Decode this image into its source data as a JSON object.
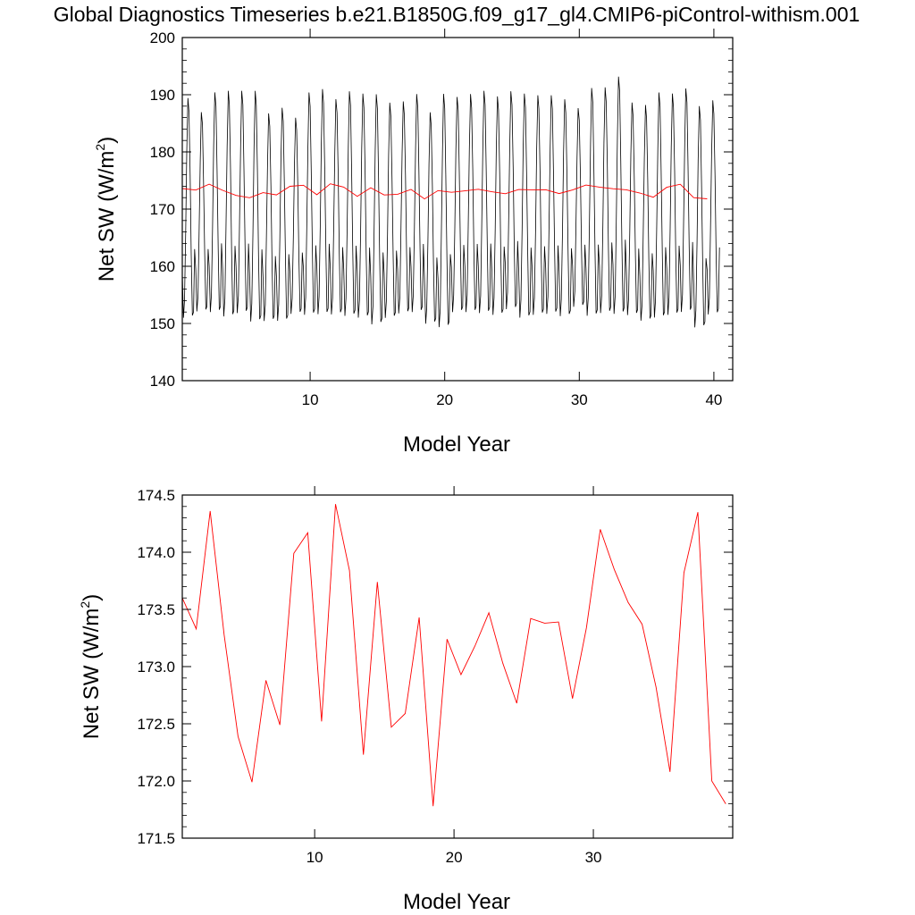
{
  "title": "Global Diagnostics Timeseries b.e21.B1850G.f09_g17_gl4.CMIP6-piControl-withism.001",
  "chart_data": [
    {
      "type": "line",
      "xlabel": "Model Year",
      "ylabel_main": "Net SW (W/m",
      "ylabel_sup": "2",
      "ylabel_close": ")",
      "xlim": [
        0.5,
        41.4
      ],
      "ylim": [
        140,
        200
      ],
      "xticks": [
        10,
        20,
        30,
        40
      ],
      "xtick_labels": [
        "10",
        "20",
        "30",
        "40"
      ],
      "yticks": [
        140,
        150,
        160,
        170,
        180,
        190,
        200
      ],
      "ytick_labels": [
        "140",
        "150",
        "160",
        "170",
        "180",
        "190",
        "200"
      ],
      "series": [
        {
          "style": "monthly",
          "color": "#000000",
          "monthly_min": [
            150.0,
            151.2,
            151.0,
            150.2,
            150.8,
            149.3,
            149.5,
            149.5,
            150.8,
            150.5,
            150.6,
            150.6,
            150.3,
            150.0,
            148.8,
            150.0,
            150.8,
            151.0,
            149.0,
            148.3,
            151.0,
            151.0,
            150.8,
            150.5,
            151.5,
            150.0,
            150.5,
            150.7,
            150.3,
            152.0,
            150.3,
            150.8,
            150.6,
            150.5,
            149.5,
            150.0,
            150.5,
            151.0,
            148.3,
            150.6
          ],
          "monthly_max": [
            190.0,
            187.5,
            191.0,
            191.3,
            191.3,
            191.3,
            187.3,
            188.3,
            186.5,
            191.0,
            191.6,
            189.8,
            191.2,
            190.8,
            190.7,
            189.2,
            189.4,
            190.7,
            187.5,
            190.8,
            190.2,
            190.7,
            191.3,
            190.3,
            191.2,
            190.8,
            190.5,
            190.5,
            189.8,
            188.2,
            191.8,
            191.9,
            193.8,
            189.2,
            188.8,
            191.0,
            190.8,
            191.7,
            188.6,
            189.6
          ]
        },
        {
          "style": "annual",
          "color": "#ff0000",
          "x": [
            0.5,
            1.5,
            2.5,
            3.5,
            4.5,
            5.5,
            6.5,
            7.5,
            8.5,
            9.5,
            10.5,
            11.5,
            12.5,
            13.5,
            14.5,
            15.5,
            16.5,
            17.5,
            18.5,
            19.5,
            20.5,
            21.5,
            22.5,
            23.5,
            24.5,
            25.5,
            26.5,
            27.5,
            28.5,
            29.5,
            30.5,
            31.5,
            32.5,
            33.5,
            34.5,
            35.5,
            36.5,
            37.5,
            38.5,
            39.5
          ],
          "values": [
            173.6,
            173.33,
            174.36,
            173.28,
            172.39,
            171.99,
            172.88,
            172.49,
            173.99,
            174.17,
            172.52,
            174.42,
            173.84,
            172.23,
            173.74,
            172.47,
            172.59,
            173.43,
            171.78,
            173.24,
            172.93,
            173.18,
            173.47,
            173.03,
            172.68,
            173.42,
            173.38,
            173.39,
            172.72,
            173.34,
            174.2,
            173.85,
            173.56,
            173.37,
            172.82,
            172.08,
            173.82,
            174.35,
            172.0,
            171.8
          ]
        }
      ]
    },
    {
      "type": "line",
      "xlabel": "Model Year",
      "ylabel_main": "Net SW (W/m",
      "ylabel_sup": "2",
      "ylabel_close": ")",
      "xlim": [
        0.5,
        40.0
      ],
      "ylim": [
        171.5,
        174.5
      ],
      "xticks": [
        10,
        20,
        30
      ],
      "xtick_labels": [
        "10",
        "20",
        "30"
      ],
      "yticks": [
        171.5,
        172.0,
        172.5,
        173.0,
        173.5,
        174.0,
        174.5
      ],
      "ytick_labels": [
        "171.5",
        "172.0",
        "172.5",
        "173.0",
        "173.5",
        "174.0",
        "174.5"
      ],
      "series": [
        {
          "style": "annual",
          "color": "#ff0000",
          "x": [
            0.5,
            1.5,
            2.5,
            3.5,
            4.5,
            5.5,
            6.5,
            7.5,
            8.5,
            9.5,
            10.5,
            11.5,
            12.5,
            13.5,
            14.5,
            15.5,
            16.5,
            17.5,
            18.5,
            19.5,
            20.5,
            21.5,
            22.5,
            23.5,
            24.5,
            25.5,
            26.5,
            27.5,
            28.5,
            29.5,
            30.5,
            31.5,
            32.5,
            33.5,
            34.5,
            35.5,
            36.5,
            37.5,
            38.5,
            39.5
          ],
          "values": [
            173.6,
            173.33,
            174.36,
            173.28,
            172.39,
            171.99,
            172.88,
            172.49,
            173.99,
            174.17,
            172.52,
            174.42,
            173.84,
            172.23,
            173.74,
            172.47,
            172.59,
            173.43,
            171.78,
            173.24,
            172.93,
            173.18,
            173.47,
            173.03,
            172.68,
            173.42,
            173.38,
            173.39,
            172.72,
            173.34,
            174.2,
            173.85,
            173.56,
            173.37,
            172.82,
            172.08,
            173.82,
            174.35,
            172.0,
            171.8
          ]
        }
      ]
    }
  ]
}
